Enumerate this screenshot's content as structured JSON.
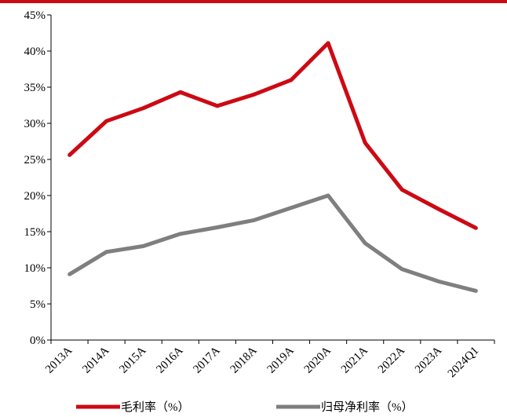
{
  "chart_data": {
    "type": "line",
    "title": "",
    "xlabel": "",
    "ylabel": "",
    "categories": [
      "2013A",
      "2014A",
      "2015A",
      "2016A",
      "2017A",
      "2018A",
      "2019A",
      "2020A",
      "2021A",
      "2022A",
      "2023A",
      "2024Q1"
    ],
    "ylim": [
      0,
      45
    ],
    "ytick_values": [
      0,
      5,
      10,
      15,
      20,
      25,
      30,
      35,
      40,
      45
    ],
    "ytick_labels": [
      "0%",
      "5%",
      "10%",
      "15%",
      "20%",
      "25%",
      "30%",
      "35%",
      "40%",
      "45%"
    ],
    "series": [
      {
        "name": "毛利率（%）",
        "color": "#cc0a14",
        "values": [
          25.6,
          30.3,
          32.1,
          34.3,
          32.4,
          34.0,
          36.0,
          41.1,
          27.3,
          20.8,
          18.1,
          15.5
        ]
      },
      {
        "name": "归母净利率（%）",
        "color": "#7f7f7f",
        "values": [
          9.1,
          12.2,
          13.0,
          14.7,
          15.6,
          16.6,
          18.3,
          20.0,
          13.4,
          9.8,
          8.1,
          6.8
        ]
      }
    ],
    "grid": false,
    "legend": "bottom"
  },
  "colors": {
    "accent_bar": "#cc0a14",
    "axis": "#000000"
  }
}
